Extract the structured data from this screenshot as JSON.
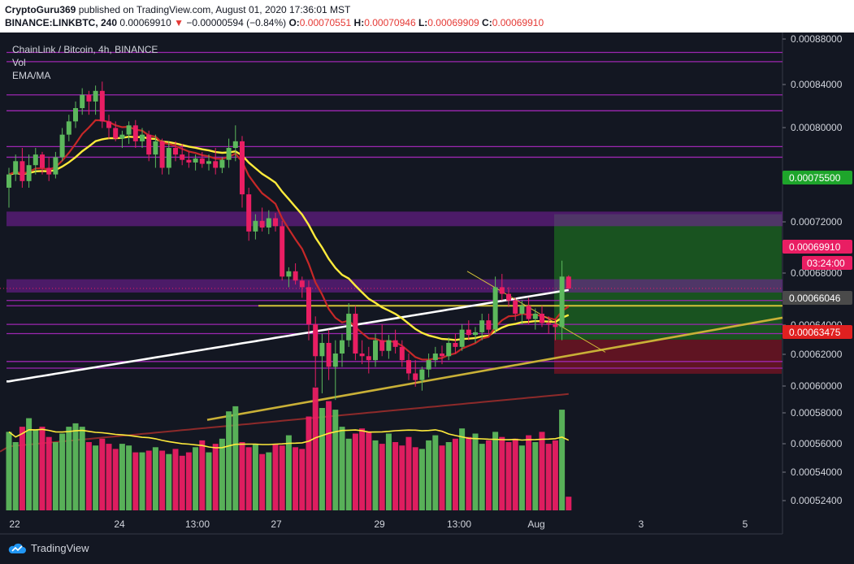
{
  "header": {
    "author": "CryptoGuru369",
    "published_text": "published on TradingView.com, August 01, 2020 17:36:01 MST",
    "symbol": "BINANCE:LINKBTC, 240",
    "last": "0.00069910",
    "change": "−0.00000594 (−0.84%)",
    "o_label": "O:",
    "o_value": "0.00070551",
    "h_label": "H:",
    "h_value": "0.00070946",
    "l_label": "L:",
    "l_value": "0.00069909",
    "c_label": "C:",
    "c_value": "0.00069910"
  },
  "legend": {
    "title": "ChainLink / Bitcoin, 4h, BINANCE",
    "vol": "Vol",
    "ema": "EMA/MA"
  },
  "footer": {
    "brand": "TradingView"
  },
  "colors": {
    "up": "#5cb85c",
    "down": "#e91e63",
    "ema_yellow": "#ffeb3b",
    "ema_red": "#c62828",
    "ma_white": "#ffffff",
    "ma_brown": "#8d2a2a",
    "support_purple": "#7b1fa2",
    "target_green": "#1b5e20",
    "stop_red": "#6d1422",
    "trend_gold": "#c9b037"
  },
  "chart_data": {
    "type": "candlestick",
    "interval": "4h",
    "y_range": [
      0.000514,
      0.000892
    ],
    "y_ticks": [
      "0.00088000",
      "0.00084000",
      "0.00080000",
      "0.00072000",
      "0.00068000",
      "0.00064000",
      "0.00062000",
      "0.00060000",
      "0.00058000",
      "0.00056000",
      "0.00054000",
      "0.00052400"
    ],
    "x_ticks": [
      "22",
      "24",
      "13:00",
      "27",
      "29",
      "13:00",
      "Aug",
      "3",
      "5"
    ],
    "price_tags": [
      {
        "label": "0.00075500",
        "color": "#1ea52b"
      },
      {
        "label": "0.00069910",
        "color": "#e91e63"
      },
      {
        "label": "03:24:00",
        "color": "#e91e63"
      },
      {
        "label": "0.00066046",
        "color": "#4a4a4a"
      },
      {
        "label": "0.00063475",
        "color": "#e02020"
      }
    ],
    "horizontal_levels": [
      0.000877,
      0.00087,
      0.000845,
      0.000833,
      0.000806,
      0.000798,
      0.00069,
      0.000686,
      0.000672,
      0.000665,
      0.000644,
      0.000639
    ],
    "resistance_zones": [
      [
        0.000746,
        0.000757
      ],
      [
        0.000696,
        0.000706
      ]
    ],
    "position": {
      "entry": 0.00066046,
      "target": 0.000755,
      "stop": 0.00063475
    },
    "trendlines": [
      {
        "from": [
          0,
          0.0006
        ],
        "to": [
          96,
          0.000677
        ]
      },
      {
        "from": [
          78,
          0.00071
        ],
        "to": [
          98,
          0.000651
        ]
      }
    ],
    "candles": [
      [
        0.000775,
        0.00079,
        0.00076,
        0.000785
      ],
      [
        0.000785,
        0.0008,
        0.00078,
        0.000795
      ],
      [
        0.000795,
        0.000805,
        0.000775,
        0.00078
      ],
      [
        0.00078,
        0.0008,
        0.000775,
        0.000792
      ],
      [
        0.000792,
        0.000805,
        0.000785,
        0.0008
      ],
      [
        0.0008,
        0.000802,
        0.000785,
        0.00079
      ],
      [
        0.00079,
        0.000798,
        0.00078,
        0.000785
      ],
      [
        0.000785,
        0.000802,
        0.000782,
        0.000798
      ],
      [
        0.000798,
        0.00082,
        0.000795,
        0.000815
      ],
      [
        0.000815,
        0.00083,
        0.00081,
        0.000825
      ],
      [
        0.000825,
        0.00084,
        0.00082,
        0.000835
      ],
      [
        0.000835,
        0.00085,
        0.00083,
        0.000845
      ],
      [
        0.000845,
        0.000848,
        0.00083,
        0.00084
      ],
      [
        0.00084,
        0.000852,
        0.00083,
        0.000848
      ],
      [
        0.000848,
        0.000855,
        0.00082,
        0.000825
      ],
      [
        0.000825,
        0.00083,
        0.000812,
        0.00082
      ],
      [
        0.00082,
        0.000825,
        0.00081,
        0.000812
      ],
      [
        0.000812,
        0.000818,
        0.000805,
        0.000815
      ],
      [
        0.000815,
        0.000825,
        0.000808,
        0.000822
      ],
      [
        0.000822,
        0.000826,
        0.000805,
        0.00081
      ],
      [
        0.00081,
        0.00082,
        0.000805,
        0.000815
      ],
      [
        0.000815,
        0.000818,
        0.000795,
        0.0008
      ],
      [
        0.0008,
        0.000815,
        0.00079,
        0.00081
      ],
      [
        0.00081,
        0.000812,
        0.000785,
        0.00079
      ],
      [
        0.00079,
        0.00081,
        0.000785,
        0.000805
      ],
      [
        0.000805,
        0.00081,
        0.000795,
        0.0008
      ],
      [
        0.0008,
        0.000808,
        0.000792,
        0.000796
      ],
      [
        0.000796,
        0.000802,
        0.00079,
        0.000794
      ],
      [
        0.000794,
        0.0008,
        0.000788,
        0.000797
      ],
      [
        0.000797,
        0.000802,
        0.00079,
        0.000793
      ],
      [
        0.000793,
        0.0008,
        0.000788,
        0.000795
      ],
      [
        0.000795,
        0.000805,
        0.000785,
        0.00079
      ],
      [
        0.00079,
        0.000798,
        0.000786,
        0.000796
      ],
      [
        0.000796,
        0.000812,
        0.00079,
        0.000805
      ],
      [
        0.000805,
        0.000822,
        0.000795,
        0.00081
      ],
      [
        0.00081,
        0.000814,
        0.00076,
        0.00077
      ],
      [
        0.00077,
        0.000775,
        0.000735,
        0.000742
      ],
      [
        0.000742,
        0.000755,
        0.000736,
        0.00075
      ],
      [
        0.00075,
        0.00076,
        0.000742,
        0.000745
      ],
      [
        0.000745,
        0.000758,
        0.00074,
        0.000752
      ],
      [
        0.000752,
        0.000756,
        0.000742,
        0.000746
      ],
      [
        0.000746,
        0.00075,
        0.000705,
        0.000708
      ],
      [
        0.000708,
        0.000715,
        0.0007,
        0.000712
      ],
      [
        0.000712,
        0.000718,
        0.000702,
        0.000705
      ],
      [
        0.000705,
        0.000708,
        0.000692,
        0.0007
      ],
      [
        0.0007,
        0.000705,
        0.00066,
        0.000672
      ],
      [
        0.000672,
        0.000678,
        0.000625,
        0.000648
      ],
      [
        0.000648,
        0.000665,
        0.00062,
        0.000658
      ],
      [
        0.000658,
        0.000668,
        0.00063,
        0.00064
      ],
      [
        0.00064,
        0.00066,
        0.000615,
        0.00065
      ],
      [
        0.00065,
        0.000665,
        0.00064,
        0.00066
      ],
      [
        0.00066,
        0.000688,
        0.000655,
        0.00068
      ],
      [
        0.00068,
        0.000686,
        0.000645,
        0.00065
      ],
      [
        0.00065,
        0.00066,
        0.000642,
        0.000648
      ],
      [
        0.000648,
        0.000655,
        0.000635,
        0.000645
      ],
      [
        0.000645,
        0.000665,
        0.00064,
        0.00066
      ],
      [
        0.00066,
        0.000672,
        0.000648,
        0.000652
      ],
      [
        0.000652,
        0.000664,
        0.000646,
        0.00066
      ],
      [
        0.00066,
        0.000668,
        0.00065,
        0.000655
      ],
      [
        0.000655,
        0.00066,
        0.00064,
        0.000645
      ],
      [
        0.000645,
        0.00065,
        0.00063,
        0.000635
      ],
      [
        0.000635,
        0.000645,
        0.000625,
        0.00063
      ],
      [
        0.00063,
        0.00064,
        0.000622,
        0.000638
      ],
      [
        0.000638,
        0.00065,
        0.000632,
        0.000645
      ],
      [
        0.000645,
        0.000655,
        0.00064,
        0.00065
      ],
      [
        0.00065,
        0.000656,
        0.000642,
        0.000648
      ],
      [
        0.000648,
        0.000662,
        0.000645,
        0.000658
      ],
      [
        0.000658,
        0.000665,
        0.00065,
        0.000655
      ],
      [
        0.000655,
        0.000672,
        0.000652,
        0.000668
      ],
      [
        0.000668,
        0.000675,
        0.00066,
        0.000664
      ],
      [
        0.000664,
        0.00067,
        0.000658,
        0.000666
      ],
      [
        0.000666,
        0.00068,
        0.00066,
        0.000675
      ],
      [
        0.000675,
        0.00068,
        0.000665,
        0.000668
      ],
      [
        0.000668,
        0.000708,
        0.000665,
        0.0007
      ],
      [
        0.0007,
        0.00071,
        0.00069,
        0.000695
      ],
      [
        0.000695,
        0.0007,
        0.000685,
        0.00069
      ],
      [
        0.00069,
        0.000692,
        0.000675,
        0.00068
      ],
      [
        0.00068,
        0.00069,
        0.000672,
        0.000686
      ],
      [
        0.000686,
        0.000692,
        0.000672,
        0.000676
      ],
      [
        0.000676,
        0.000684,
        0.000668,
        0.00068
      ],
      [
        0.00068,
        0.000686,
        0.00067,
        0.000673
      ],
      [
        0.000673,
        0.000678,
        0.000665,
        0.000672
      ],
      [
        0.000672,
        0.000676,
        0.00066,
        0.00067
      ],
      [
        0.00067,
        0.00072,
        0.00066,
        0.000708
      ],
      [
        0.000708,
        0.000709,
        0.000699,
        0.000699
      ]
    ],
    "volumes": [
      46,
      40,
      49,
      54,
      47,
      49,
      43,
      40,
      45,
      49,
      51,
      49,
      40,
      38,
      42,
      39,
      36,
      39,
      38,
      34,
      34,
      35,
      37,
      35,
      33,
      36,
      32,
      34,
      37,
      41,
      34,
      39,
      42,
      58,
      61,
      40,
      37,
      39,
      33,
      34,
      39,
      38,
      44,
      37,
      36,
      55,
      72,
      60,
      64,
      59,
      49,
      42,
      45,
      48,
      46,
      41,
      39,
      45,
      40,
      38,
      43,
      37,
      36,
      41,
      44,
      38,
      40,
      42,
      48,
      43,
      45,
      39,
      41,
      46,
      43,
      40,
      42,
      38,
      44,
      40,
      46,
      39,
      41,
      59,
      8
    ],
    "ema_yellow": "20-period, yellow",
    "ema_red": "9-period, red",
    "ma_white": "100-period, white",
    "ma_brown": "200-period, brown"
  }
}
